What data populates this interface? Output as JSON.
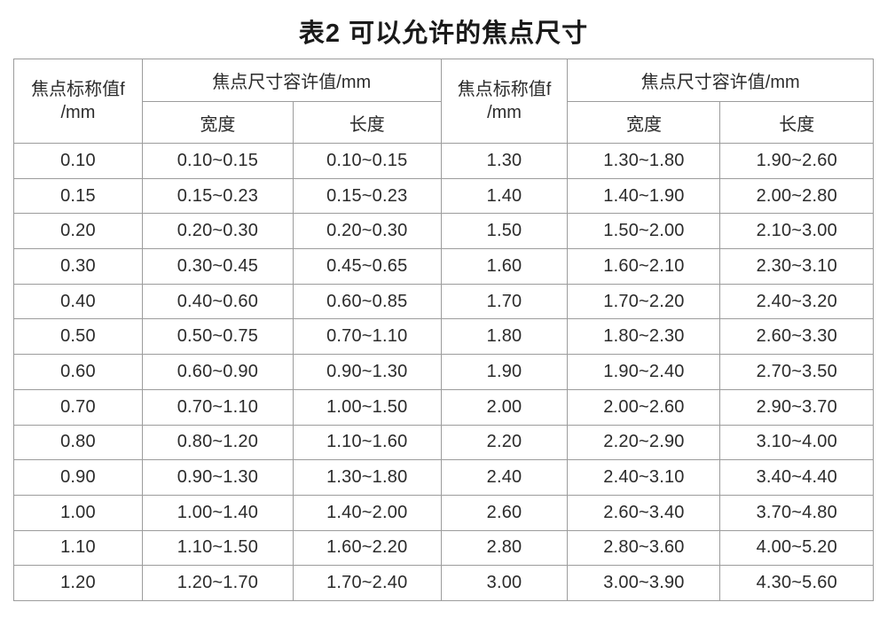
{
  "title": "表2  可以允许的焦点尺寸",
  "table": {
    "header": {
      "nominal_line1": "焦点标称值f",
      "nominal_line2": "/mm",
      "tolerance_label": "焦点尺寸容许值/mm",
      "width_label": "宽度",
      "length_label": "长度"
    },
    "columns": [
      "nominal-left",
      "width-left",
      "length-left",
      "nominal-right",
      "width-right",
      "length-right"
    ],
    "rows": [
      [
        "0.10",
        "0.10~0.15",
        "0.10~0.15",
        "1.30",
        "1.30~1.80",
        "1.90~2.60"
      ],
      [
        "0.15",
        "0.15~0.23",
        "0.15~0.23",
        "1.40",
        "1.40~1.90",
        "2.00~2.80"
      ],
      [
        "0.20",
        "0.20~0.30",
        "0.20~0.30",
        "1.50",
        "1.50~2.00",
        "2.10~3.00"
      ],
      [
        "0.30",
        "0.30~0.45",
        "0.45~0.65",
        "1.60",
        "1.60~2.10",
        "2.30~3.10"
      ],
      [
        "0.40",
        "0.40~0.60",
        "0.60~0.85",
        "1.70",
        "1.70~2.20",
        "2.40~3.20"
      ],
      [
        "0.50",
        "0.50~0.75",
        "0.70~1.10",
        "1.80",
        "1.80~2.30",
        "2.60~3.30"
      ],
      [
        "0.60",
        "0.60~0.90",
        "0.90~1.30",
        "1.90",
        "1.90~2.40",
        "2.70~3.50"
      ],
      [
        "0.70",
        "0.70~1.10",
        "1.00~1.50",
        "2.00",
        "2.00~2.60",
        "2.90~3.70"
      ],
      [
        "0.80",
        "0.80~1.20",
        "1.10~1.60",
        "2.20",
        "2.20~2.90",
        "3.10~4.00"
      ],
      [
        "0.90",
        "0.90~1.30",
        "1.30~1.80",
        "2.40",
        "2.40~3.10",
        "3.40~4.40"
      ],
      [
        "1.00",
        "1.00~1.40",
        "1.40~2.00",
        "2.60",
        "2.60~3.40",
        "3.70~4.80"
      ],
      [
        "1.10",
        "1.10~1.50",
        "1.60~2.20",
        "2.80",
        "2.80~3.60",
        "4.00~5.20"
      ],
      [
        "1.20",
        "1.20~1.70",
        "1.70~2.40",
        "3.00",
        "3.00~3.90",
        "4.30~5.60"
      ]
    ]
  },
  "colors": {
    "text": "#2b2b2b",
    "title_text": "#1a1a1a",
    "table_border": "#9c9c9c",
    "background": "#ffffff"
  }
}
